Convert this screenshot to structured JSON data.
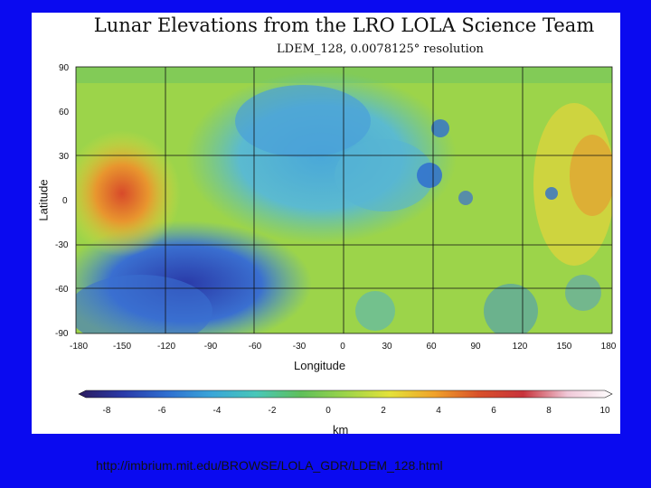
{
  "title": "Lunar Elevations from the LRO LOLA Science Team",
  "subtitle": "LDEM_128, 0.0078125° resolution",
  "url": "http://imbrium.mit.edu/BROWSE/LOLA_GDR/LDEM_128.html",
  "colors": {
    "background": "#0a0af0",
    "panel": "#ffffff"
  },
  "chart_data": {
    "type": "heatmap",
    "title": "Lunar Elevations from the LRO LOLA Science Team",
    "subtitle": "LDEM_128, 0.0078125° resolution",
    "xlabel": "Longitude",
    "ylabel": "Latitude",
    "xlim": [
      -180,
      180
    ],
    "ylim": [
      -90,
      90
    ],
    "x_ticks": [
      "-180",
      "-150",
      "-120",
      "-90",
      "-60",
      "-30",
      "0",
      "30",
      "60",
      "90",
      "120",
      "150",
      "180"
    ],
    "y_ticks": [
      "90",
      "60",
      "30",
      "0",
      "-30",
      "-60",
      "-90"
    ],
    "colorbar": {
      "label": "km",
      "range": [
        -9,
        10
      ],
      "ticks": [
        "-8",
        "-6",
        "-4",
        "-2",
        "0",
        "2",
        "4",
        "6",
        "8",
        "10"
      ],
      "colors": [
        "#2b1b5e",
        "#2a3aa8",
        "#2f6fd0",
        "#3aa6d8",
        "#48c7b8",
        "#5fbf5a",
        "#9cd44a",
        "#e4e23a",
        "#f0a22a",
        "#d8502a",
        "#c8343c",
        "#f0c8d8",
        "#ffffff"
      ]
    }
  }
}
